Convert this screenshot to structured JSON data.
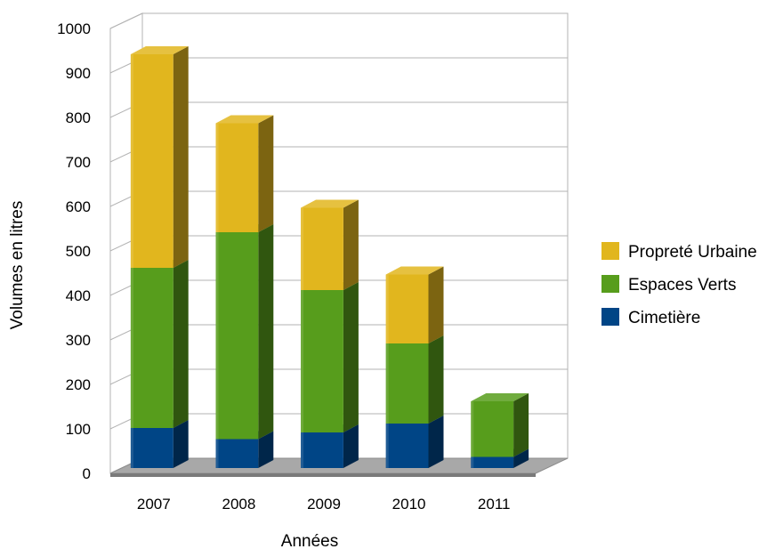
{
  "chart_data": {
    "type": "bar",
    "stacked": true,
    "three_d": true,
    "title": "",
    "xlabel": "Années",
    "ylabel": "Volumes en litres",
    "categories": [
      "2007",
      "2008",
      "2009",
      "2010",
      "2011"
    ],
    "ylim": [
      0,
      1000
    ],
    "yticks": [
      0,
      100,
      200,
      300,
      400,
      500,
      600,
      700,
      800,
      900,
      1000
    ],
    "grid": true,
    "legend_position": "right",
    "series": [
      {
        "name": "Cimetière",
        "color": "#004586",
        "values": [
          90,
          65,
          80,
          100,
          25
        ]
      },
      {
        "name": "Espaces Verts",
        "color": "#579d1c",
        "values": [
          360,
          465,
          320,
          180,
          125
        ]
      },
      {
        "name": "Propreté Urbaine",
        "color": "#e1b61e",
        "values": [
          480,
          245,
          185,
          155,
          0
        ]
      }
    ]
  }
}
